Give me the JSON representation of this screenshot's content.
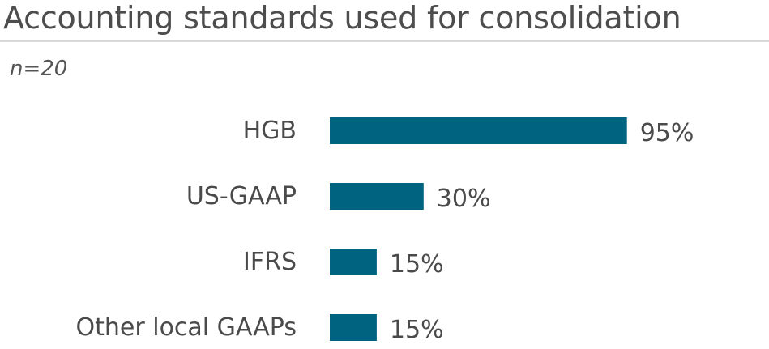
{
  "chart_data": {
    "type": "bar",
    "orientation": "horizontal",
    "title": "Accounting standards used for consolidation",
    "subtitle": "n=20",
    "categories": [
      "HGB",
      "US-GAAP",
      "IFRS",
      "Other local GAAPs"
    ],
    "values": [
      95,
      30,
      15,
      15
    ],
    "value_labels": [
      "95%",
      "30%",
      "15%",
      "15%"
    ],
    "unit": "%",
    "xlim": [
      0,
      100
    ],
    "grid": false,
    "legend": "none",
    "bar_color": "#00637f"
  }
}
